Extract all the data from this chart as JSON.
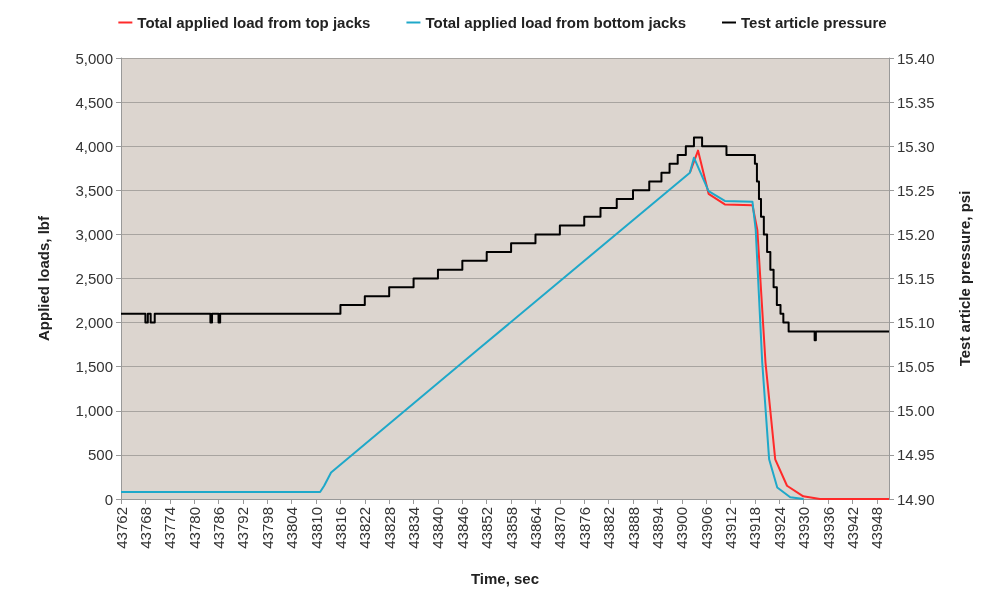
{
  "chart_data": {
    "type": "line",
    "xlabel": "Time, sec",
    "ylabel": "Applied loads, lbf",
    "y2label": "Test article pressure, psi",
    "xlim": [
      43762,
      43951
    ],
    "xticks": [
      43762,
      43768,
      43774,
      43780,
      43786,
      43792,
      43798,
      43804,
      43810,
      43816,
      43822,
      43828,
      43834,
      43840,
      43846,
      43852,
      43858,
      43864,
      43870,
      43876,
      43882,
      43888,
      43894,
      43900,
      43906,
      43912,
      43918,
      43924,
      43930,
      43936,
      43942,
      43948
    ],
    "ylim": [
      0,
      5000
    ],
    "yticks": [
      {
        "value": 0,
        "label": "0"
      },
      {
        "value": 500,
        "label": "500"
      },
      {
        "value": 1000,
        "label": "1,000"
      },
      {
        "value": 1500,
        "label": "1,500"
      },
      {
        "value": 2000,
        "label": "2,000"
      },
      {
        "value": 2500,
        "label": "2,500"
      },
      {
        "value": 3000,
        "label": "3,000"
      },
      {
        "value": 3500,
        "label": "3,500"
      },
      {
        "value": 4000,
        "label": "4,000"
      },
      {
        "value": 4500,
        "label": "4,500"
      },
      {
        "value": 5000,
        "label": "5,000"
      }
    ],
    "y2lim": [
      14.9,
      15.4
    ],
    "y2ticks": [
      {
        "value": 14.9,
        "label": "14.90"
      },
      {
        "value": 14.95,
        "label": "14.95"
      },
      {
        "value": 15,
        "label": "15.00"
      },
      {
        "value": 15.05,
        "label": "15.05"
      },
      {
        "value": 15.1,
        "label": "15.10"
      },
      {
        "value": 15.15,
        "label": "15.15"
      },
      {
        "value": 15.2,
        "label": "15.20"
      },
      {
        "value": 15.25,
        "label": "15.25"
      },
      {
        "value": 15.3,
        "label": "15.30"
      },
      {
        "value": 15.35,
        "label": "15.35"
      },
      {
        "value": 15.4,
        "label": "15.40"
      }
    ],
    "grid": "y",
    "legend": "top",
    "marker": "none",
    "line_style": "solid",
    "series": [
      {
        "name": "Total applied load from top jacks",
        "color": "#ff2a2a",
        "x": [
          43902,
          43904,
          43906.6,
          43910.6,
          43917.4,
          43918.6,
          43920.6,
          43923,
          43925.9,
          43929.9,
          43934,
          43951
        ],
        "values": [
          3700,
          3950,
          3460,
          3340,
          3330,
          3050,
          1550,
          450,
          150,
          30,
          0,
          0
        ]
      },
      {
        "name": "Total applied load from bottom jacks",
        "color": "#1fa8c9",
        "x": [
          43762,
          43811,
          43812,
          43813.7,
          43850,
          43902,
          43903,
          43906.6,
          43910.6,
          43917.4,
          43918.2,
          43919.8,
          43921.5,
          43923.5,
          43926.7,
          43930
        ],
        "values": [
          80,
          80,
          150,
          300,
          1700,
          3700,
          3870,
          3490,
          3380,
          3370,
          3050,
          1550,
          450,
          130,
          20,
          0
        ]
      },
      {
        "name": "Test article pressure",
        "type": "step",
        "axis": "y2",
        "color": "#000000",
        "x": [
          43762,
          43768,
          43768.6,
          43769.3,
          43770.3,
          43784,
          43784.4,
          43786,
          43786.4,
          43816,
          43822,
          43828,
          43834,
          43840,
          43846,
          43852,
          43858,
          43864,
          43870,
          43876,
          43880,
          43884,
          43888,
          43892,
          43895,
          43897,
          43899,
          43901,
          43903,
          43905,
          43911,
          43918,
          43918.5,
          43919,
          43919.5,
          43920.2,
          43921,
          43921.8,
          43922.6,
          43923.4,
          43924.3,
          43925,
          43926.3,
          43932.7,
          43933,
          43951
        ],
        "values": [
          15.11,
          15.1,
          15.11,
          15.1,
          15.11,
          15.1,
          15.11,
          15.1,
          15.11,
          15.12,
          15.13,
          15.14,
          15.15,
          15.16,
          15.17,
          15.18,
          15.19,
          15.2,
          15.21,
          15.22,
          15.23,
          15.24,
          15.25,
          15.26,
          15.27,
          15.28,
          15.29,
          15.3,
          15.31,
          15.3,
          15.29,
          15.28,
          15.26,
          15.24,
          15.22,
          15.2,
          15.18,
          15.16,
          15.14,
          15.12,
          15.11,
          15.1,
          15.09,
          15.08,
          15.09,
          15.09
        ]
      }
    ]
  }
}
